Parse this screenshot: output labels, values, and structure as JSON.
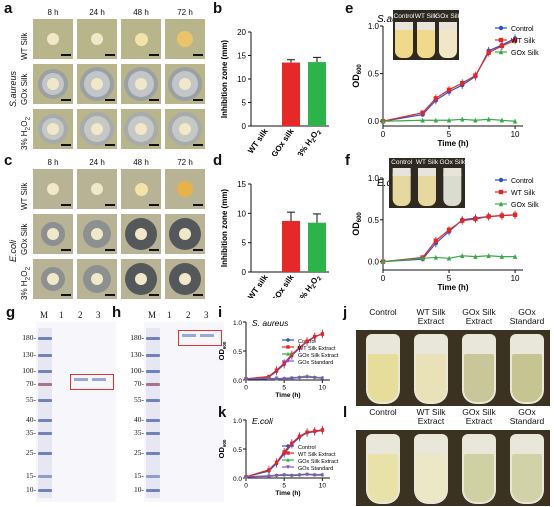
{
  "panels": {
    "a": "a",
    "b": "b",
    "c": "c",
    "d": "d",
    "e": "e",
    "f": "f",
    "g": "g",
    "h": "h",
    "i": "i",
    "j": "j",
    "k": "k",
    "l": "l"
  },
  "plates": {
    "times": [
      "8 h",
      "24 h",
      "48 h",
      "72 h"
    ],
    "rows": [
      "WT Silk",
      "GOx Silk",
      "3% H2O2"
    ],
    "saureus": "S.aureus",
    "ecoli": "E.coli"
  },
  "gels": {
    "lanes": [
      "M",
      "1",
      "2",
      "3"
    ],
    "markers": [
      "180-",
      "130-",
      "100-",
      "70-",
      "55-",
      "40-",
      "35-",
      "25-",
      "15-",
      "10-"
    ]
  },
  "tubes": {
    "labels": [
      "Control",
      "WT Silk Extract",
      "GOx Silk Extract",
      "GOx Standard"
    ]
  },
  "chart_data": [
    {
      "id": "b",
      "type": "bar",
      "categories": [
        "WT silk",
        "GOx silk",
        "3% H2O2"
      ],
      "values": [
        0,
        13.5,
        13.6
      ],
      "errors": [
        0,
        0.6,
        1.0
      ],
      "colors": [
        "#333333",
        "#e62828",
        "#2db34a"
      ],
      "ylabel": "Inhibition zone (mm)",
      "ylim": [
        0,
        20
      ],
      "yticks": [
        0,
        5,
        10,
        15,
        20
      ]
    },
    {
      "id": "d",
      "type": "bar",
      "categories": [
        "WT silk",
        "GOx silk",
        "3% H2O2"
      ],
      "values": [
        0,
        8.7,
        8.4
      ],
      "errors": [
        0,
        1.5,
        1.5
      ],
      "colors": [
        "#333333",
        "#e62828",
        "#2db34a"
      ],
      "ylabel": "Inhibition zone (mm)",
      "ylim": [
        0,
        15
      ],
      "yticks": [
        0,
        5,
        10,
        15
      ]
    },
    {
      "id": "e",
      "type": "line",
      "title": "S.aureus",
      "xlabel": "Time (h)",
      "ylabel": "OD600",
      "xlim": [
        0,
        10.6
      ],
      "ylim": [
        -0.05,
        1.0
      ],
      "xticks": [
        0,
        5,
        10
      ],
      "yticks": [
        0.0,
        0.5,
        1.0
      ],
      "inset_labels": [
        "Control",
        "WT Silk",
        "GOx Silk"
      ],
      "series": [
        {
          "name": "Control",
          "color": "#2b50c8",
          "marker": "circle",
          "x": [
            0,
            3,
            4,
            5,
            6,
            7,
            8,
            9,
            10
          ],
          "y": [
            0.0,
            0.07,
            0.22,
            0.31,
            0.38,
            0.47,
            0.74,
            0.8,
            0.87
          ]
        },
        {
          "name": "WT Silk",
          "color": "#e02828",
          "marker": "square",
          "x": [
            0,
            3,
            4,
            5,
            6,
            7,
            8,
            9,
            10
          ],
          "y": [
            0.0,
            0.09,
            0.24,
            0.33,
            0.4,
            0.48,
            0.72,
            0.79,
            0.85
          ]
        },
        {
          "name": "GOx Silk",
          "color": "#3aa84a",
          "marker": "triangle",
          "x": [
            0,
            3,
            4,
            5,
            6,
            7,
            8,
            9,
            10
          ],
          "y": [
            0.0,
            0.01,
            0.01,
            0.01,
            0.02,
            0.01,
            0.02,
            0.01,
            0.0
          ]
        }
      ]
    },
    {
      "id": "f",
      "type": "line",
      "title": "E.coli",
      "xlabel": "Time (h)",
      "ylabel": "OD600",
      "xlim": [
        0,
        10.6
      ],
      "ylim": [
        -0.1,
        1.0
      ],
      "xticks": [
        0,
        5,
        10
      ],
      "yticks": [
        0.0,
        0.5,
        1.0
      ],
      "inset_labels": [
        "Control",
        "WT Silk",
        "GOx Silk"
      ],
      "series": [
        {
          "name": "Control",
          "color": "#2b50c8",
          "marker": "circle",
          "x": [
            0,
            3,
            4,
            5,
            6,
            7,
            8,
            9,
            10
          ],
          "y": [
            0.0,
            0.03,
            0.22,
            0.36,
            0.5,
            0.52,
            0.54,
            0.55,
            0.56
          ]
        },
        {
          "name": "WT Silk",
          "color": "#e02828",
          "marker": "square",
          "x": [
            0,
            3,
            4,
            5,
            6,
            7,
            8,
            9,
            10
          ],
          "y": [
            0.0,
            0.05,
            0.25,
            0.38,
            0.49,
            0.51,
            0.54,
            0.55,
            0.56
          ]
        },
        {
          "name": "GOx Silk",
          "color": "#3aa84a",
          "marker": "triangle",
          "x": [
            0,
            3,
            4,
            5,
            6,
            7,
            8,
            9,
            10
          ],
          "y": [
            0.0,
            0.04,
            0.05,
            0.04,
            0.07,
            0.06,
            0.07,
            0.06,
            0.06
          ]
        }
      ]
    },
    {
      "id": "i",
      "type": "line",
      "title": "S. aureus",
      "xlabel": "Time (h)",
      "ylabel": "OD600",
      "xlim": [
        0,
        11
      ],
      "ylim": [
        0,
        1.0
      ],
      "xticks": [
        0,
        5,
        10
      ],
      "yticks": [
        0.0,
        0.5,
        1.0
      ],
      "series": [
        {
          "name": "Control",
          "color": "#2b50c8",
          "marker": "circle",
          "x": [
            0,
            3,
            4,
            5,
            6,
            7,
            8,
            9,
            10
          ],
          "y": [
            0.02,
            0.05,
            0.15,
            0.27,
            0.42,
            0.55,
            0.66,
            0.74,
            0.8
          ]
        },
        {
          "name": "WT Silk Extract",
          "color": "#e02828",
          "marker": "square",
          "x": [
            0,
            3,
            4,
            5,
            6,
            7,
            8,
            9,
            10
          ],
          "y": [
            0.02,
            0.06,
            0.17,
            0.29,
            0.44,
            0.56,
            0.67,
            0.75,
            0.79
          ]
        },
        {
          "name": "GOx Silk Extract",
          "color": "#3aa84a",
          "marker": "triangle",
          "x": [
            0,
            3,
            4,
            5,
            6,
            7,
            8,
            9,
            10
          ],
          "y": [
            0.02,
            0.03,
            0.02,
            0.03,
            0.04,
            0.05,
            0.07,
            0.05,
            0.04
          ]
        },
        {
          "name": "GOx Standard",
          "color": "#8a4fc0",
          "marker": "triangle-down",
          "x": [
            0,
            3,
            4,
            5,
            6,
            7,
            8,
            9,
            10
          ],
          "y": [
            0.02,
            0.02,
            0.03,
            0.02,
            0.03,
            0.04,
            0.05,
            0.04,
            0.03
          ]
        }
      ]
    },
    {
      "id": "k",
      "type": "line",
      "title": "E.coli",
      "xlabel": "Time (h)",
      "ylabel": "OD600",
      "xlim": [
        0,
        11
      ],
      "ylim": [
        0,
        1.0
      ],
      "xticks": [
        0,
        5,
        10
      ],
      "yticks": [
        0.0,
        0.5,
        1.0
      ],
      "series": [
        {
          "name": "Control",
          "color": "#2b50c8",
          "marker": "circle",
          "x": [
            0,
            3,
            4,
            5,
            6,
            7,
            8,
            9,
            10
          ],
          "y": [
            0.02,
            0.12,
            0.25,
            0.42,
            0.58,
            0.7,
            0.78,
            0.8,
            0.82
          ]
        },
        {
          "name": "WT Silk Extract",
          "color": "#e02828",
          "marker": "square",
          "x": [
            0,
            3,
            4,
            5,
            6,
            7,
            8,
            9,
            10
          ],
          "y": [
            0.02,
            0.14,
            0.27,
            0.45,
            0.6,
            0.72,
            0.79,
            0.81,
            0.83
          ]
        },
        {
          "name": "GOx Silk Extract",
          "color": "#3aa84a",
          "marker": "triangle",
          "x": [
            0,
            3,
            4,
            5,
            6,
            7,
            8,
            9,
            10
          ],
          "y": [
            0.02,
            0.04,
            0.05,
            0.06,
            0.05,
            0.06,
            0.07,
            0.06,
            0.06
          ]
        },
        {
          "name": "GOx Standard",
          "color": "#8a4fc0",
          "marker": "triangle-down",
          "x": [
            0,
            3,
            4,
            5,
            6,
            7,
            8,
            9,
            10
          ],
          "y": [
            0.02,
            0.03,
            0.04,
            0.05,
            0.04,
            0.05,
            0.06,
            0.05,
            0.05
          ]
        }
      ]
    }
  ]
}
